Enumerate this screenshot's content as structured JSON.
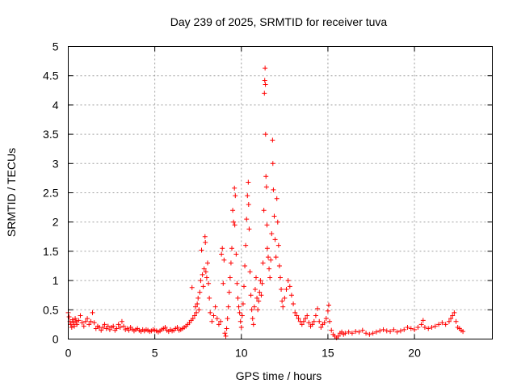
{
  "chart_data": {
    "type": "scatter",
    "title": "Day 239 of 2025, SRMTID for receiver tuva",
    "xlabel": "GPS time / hours",
    "ylabel": "SRMTID / TECUs",
    "xlim": [
      0,
      24.5
    ],
    "ylim": [
      0,
      5
    ],
    "xticks": [
      0,
      5,
      10,
      15,
      20
    ],
    "yticks": [
      0,
      0.5,
      1,
      1.5,
      2,
      2.5,
      3,
      3.5,
      4,
      4.5,
      5
    ],
    "xtick_labels": [
      "0",
      "5",
      "10",
      "15",
      "20"
    ],
    "ytick_labels": [
      "0",
      "0.5",
      "1",
      "1.5",
      "2",
      "2.5",
      "3",
      "3.5",
      "4",
      "4.5",
      "5"
    ],
    "grid": true,
    "marker": "+",
    "series": [
      {
        "name": "SRMTID",
        "color": "#ff0000",
        "points": [
          [
            0.0,
            0.45
          ],
          [
            0.05,
            0.38
          ],
          [
            0.1,
            0.3
          ],
          [
            0.15,
            0.25
          ],
          [
            0.2,
            0.2
          ],
          [
            0.25,
            0.33
          ],
          [
            0.3,
            0.28
          ],
          [
            0.35,
            0.22
          ],
          [
            0.4,
            0.35
          ],
          [
            0.45,
            0.3
          ],
          [
            0.5,
            0.25
          ],
          [
            0.6,
            0.32
          ],
          [
            0.7,
            0.4
          ],
          [
            0.8,
            0.28
          ],
          [
            0.9,
            0.22
          ],
          [
            1.0,
            0.3
          ],
          [
            1.1,
            0.35
          ],
          [
            1.2,
            0.25
          ],
          [
            1.3,
            0.3
          ],
          [
            1.4,
            0.45
          ],
          [
            1.5,
            0.28
          ],
          [
            1.6,
            0.18
          ],
          [
            1.7,
            0.22
          ],
          [
            1.8,
            0.2
          ],
          [
            1.9,
            0.15
          ],
          [
            2.0,
            0.2
          ],
          [
            2.1,
            0.25
          ],
          [
            2.2,
            0.18
          ],
          [
            2.3,
            0.22
          ],
          [
            2.4,
            0.16
          ],
          [
            2.5,
            0.2
          ],
          [
            2.6,
            0.22
          ],
          [
            2.7,
            0.15
          ],
          [
            2.8,
            0.18
          ],
          [
            2.9,
            0.25
          ],
          [
            3.0,
            0.2
          ],
          [
            3.1,
            0.3
          ],
          [
            3.2,
            0.22
          ],
          [
            3.3,
            0.16
          ],
          [
            3.4,
            0.18
          ],
          [
            3.5,
            0.15
          ],
          [
            3.6,
            0.2
          ],
          [
            3.7,
            0.17
          ],
          [
            3.8,
            0.14
          ],
          [
            3.9,
            0.16
          ],
          [
            4.0,
            0.18
          ],
          [
            4.1,
            0.15
          ],
          [
            4.2,
            0.13
          ],
          [
            4.3,
            0.16
          ],
          [
            4.4,
            0.14
          ],
          [
            4.5,
            0.16
          ],
          [
            4.6,
            0.15
          ],
          [
            4.7,
            0.13
          ],
          [
            4.8,
            0.14
          ],
          [
            4.9,
            0.16
          ],
          [
            5.0,
            0.15
          ],
          [
            5.1,
            0.14
          ],
          [
            5.2,
            0.12
          ],
          [
            5.3,
            0.14
          ],
          [
            5.4,
            0.16
          ],
          [
            5.5,
            0.18
          ],
          [
            5.6,
            0.2
          ],
          [
            5.7,
            0.15
          ],
          [
            5.8,
            0.13
          ],
          [
            5.9,
            0.16
          ],
          [
            6.0,
            0.14
          ],
          [
            6.1,
            0.15
          ],
          [
            6.2,
            0.18
          ],
          [
            6.3,
            0.2
          ],
          [
            6.4,
            0.15
          ],
          [
            6.5,
            0.16
          ],
          [
            6.6,
            0.18
          ],
          [
            6.7,
            0.2
          ],
          [
            6.8,
            0.22
          ],
          [
            6.9,
            0.25
          ],
          [
            7.0,
            0.28
          ],
          [
            7.1,
            0.32
          ],
          [
            7.15,
            0.88
          ],
          [
            7.2,
            0.35
          ],
          [
            7.3,
            0.4
          ],
          [
            7.35,
            0.55
          ],
          [
            7.4,
            0.45
          ],
          [
            7.45,
            0.6
          ],
          [
            7.5,
            0.7
          ],
          [
            7.55,
            0.5
          ],
          [
            7.6,
            0.8
          ],
          [
            7.65,
            1.0
          ],
          [
            7.7,
            1.52
          ],
          [
            7.75,
            1.1
          ],
          [
            7.8,
            0.9
          ],
          [
            7.85,
            1.2
          ],
          [
            7.9,
            1.75
          ],
          [
            7.92,
            1.65
          ],
          [
            7.95,
            1.15
          ],
          [
            8.0,
            1.05
          ],
          [
            8.05,
            1.3
          ],
          [
            8.1,
            0.95
          ],
          [
            8.15,
            0.7
          ],
          [
            8.2,
            0.45
          ],
          [
            8.3,
            0.3
          ],
          [
            8.4,
            0.4
          ],
          [
            8.5,
            0.55
          ],
          [
            8.6,
            0.35
          ],
          [
            8.7,
            0.25
          ],
          [
            8.8,
            0.3
          ],
          [
            8.85,
            1.45
          ],
          [
            8.9,
            1.55
          ],
          [
            8.95,
            0.95
          ],
          [
            9.0,
            1.35
          ],
          [
            9.05,
            0.1
          ],
          [
            9.1,
            0.05
          ],
          [
            9.15,
            0.18
          ],
          [
            9.2,
            0.35
          ],
          [
            9.25,
            0.55
          ],
          [
            9.3,
            0.8
          ],
          [
            9.35,
            1.05
          ],
          [
            9.4,
            1.3
          ],
          [
            9.45,
            1.55
          ],
          [
            9.5,
            2.2
          ],
          [
            9.55,
            2.0
          ],
          [
            9.6,
            2.58
          ],
          [
            9.62,
            1.95
          ],
          [
            9.65,
            2.45
          ],
          [
            9.7,
            1.45
          ],
          [
            9.75,
            0.95
          ],
          [
            9.8,
            0.7
          ],
          [
            9.85,
            0.55
          ],
          [
            9.9,
            0.45
          ],
          [
            9.95,
            0.3
          ],
          [
            10.0,
            0.2
          ],
          [
            10.05,
            0.4
          ],
          [
            10.1,
            0.6
          ],
          [
            10.15,
            0.9
          ],
          [
            10.2,
            1.25
          ],
          [
            10.25,
            1.6
          ],
          [
            10.3,
            2.05
          ],
          [
            10.35,
            2.45
          ],
          [
            10.4,
            2.68
          ],
          [
            10.42,
            2.3
          ],
          [
            10.45,
            1.88
          ],
          [
            10.5,
            1.15
          ],
          [
            10.55,
            0.75
          ],
          [
            10.6,
            0.5
          ],
          [
            10.65,
            0.35
          ],
          [
            10.7,
            0.25
          ],
          [
            10.75,
            0.55
          ],
          [
            10.8,
            0.85
          ],
          [
            10.85,
            1.05
          ],
          [
            10.9,
            0.7
          ],
          [
            10.95,
            0.5
          ],
          [
            11.0,
            0.65
          ],
          [
            11.05,
            0.8
          ],
          [
            11.1,
            1.0
          ],
          [
            11.15,
            0.75
          ],
          [
            11.2,
            0.95
          ],
          [
            11.25,
            1.3
          ],
          [
            11.3,
            2.2
          ],
          [
            11.33,
            4.2
          ],
          [
            11.35,
            4.42
          ],
          [
            11.37,
            4.63
          ],
          [
            11.39,
            4.35
          ],
          [
            11.4,
            3.5
          ],
          [
            11.42,
            2.78
          ],
          [
            11.45,
            2.6
          ],
          [
            11.48,
            1.95
          ],
          [
            11.5,
            1.55
          ],
          [
            11.55,
            1.4
          ],
          [
            11.6,
            1.2
          ],
          [
            11.65,
            1.05
          ],
          [
            11.7,
            1.35
          ],
          [
            11.75,
            1.8
          ],
          [
            11.8,
            3.4
          ],
          [
            11.82,
            3.0
          ],
          [
            11.85,
            2.55
          ],
          [
            11.9,
            2.1
          ],
          [
            11.95,
            1.7
          ],
          [
            12.0,
            1.4
          ],
          [
            12.05,
            2.4
          ],
          [
            12.1,
            2.0
          ],
          [
            12.15,
            1.6
          ],
          [
            12.2,
            1.25
          ],
          [
            12.25,
            1.05
          ],
          [
            12.3,
            0.85
          ],
          [
            12.35,
            0.65
          ],
          [
            12.4,
            0.55
          ],
          [
            12.5,
            0.7
          ],
          [
            12.6,
            0.85
          ],
          [
            12.7,
            1.0
          ],
          [
            12.8,
            0.9
          ],
          [
            12.9,
            0.75
          ],
          [
            13.0,
            0.6
          ],
          [
            13.1,
            0.45
          ],
          [
            13.2,
            0.4
          ],
          [
            13.3,
            0.35
          ],
          [
            13.4,
            0.3
          ],
          [
            13.5,
            0.25
          ],
          [
            13.6,
            0.3
          ],
          [
            13.7,
            0.35
          ],
          [
            13.8,
            0.4
          ],
          [
            13.9,
            0.28
          ],
          [
            14.0,
            0.22
          ],
          [
            14.1,
            0.25
          ],
          [
            14.2,
            0.3
          ],
          [
            14.3,
            0.4
          ],
          [
            14.4,
            0.52
          ],
          [
            14.5,
            0.3
          ],
          [
            14.6,
            0.2
          ],
          [
            14.7,
            0.25
          ],
          [
            14.8,
            0.28
          ],
          [
            14.9,
            0.35
          ],
          [
            15.0,
            0.48
          ],
          [
            15.05,
            0.58
          ],
          [
            15.1,
            0.3
          ],
          [
            15.2,
            0.15
          ],
          [
            15.3,
            0.08
          ],
          [
            15.4,
            0.05
          ],
          [
            15.5,
            0.02
          ],
          [
            15.6,
            0.05
          ],
          [
            15.7,
            0.1
          ],
          [
            15.8,
            0.12
          ],
          [
            15.9,
            0.08
          ],
          [
            16.0,
            0.1
          ],
          [
            16.2,
            0.12
          ],
          [
            16.4,
            0.1
          ],
          [
            16.6,
            0.13
          ],
          [
            16.8,
            0.12
          ],
          [
            17.0,
            0.15
          ],
          [
            17.2,
            0.1
          ],
          [
            17.4,
            0.08
          ],
          [
            17.6,
            0.1
          ],
          [
            17.8,
            0.12
          ],
          [
            18.0,
            0.14
          ],
          [
            18.2,
            0.16
          ],
          [
            18.4,
            0.14
          ],
          [
            18.6,
            0.13
          ],
          [
            18.8,
            0.16
          ],
          [
            19.0,
            0.12
          ],
          [
            19.2,
            0.14
          ],
          [
            19.4,
            0.16
          ],
          [
            19.6,
            0.2
          ],
          [
            19.8,
            0.18
          ],
          [
            20.0,
            0.16
          ],
          [
            20.2,
            0.2
          ],
          [
            20.4,
            0.25
          ],
          [
            20.5,
            0.32
          ],
          [
            20.6,
            0.2
          ],
          [
            20.8,
            0.18
          ],
          [
            21.0,
            0.2
          ],
          [
            21.2,
            0.22
          ],
          [
            21.4,
            0.25
          ],
          [
            21.6,
            0.28
          ],
          [
            21.8,
            0.25
          ],
          [
            22.0,
            0.3
          ],
          [
            22.1,
            0.35
          ],
          [
            22.2,
            0.4
          ],
          [
            22.3,
            0.45
          ],
          [
            22.4,
            0.3
          ],
          [
            22.5,
            0.2
          ],
          [
            22.6,
            0.18
          ],
          [
            22.7,
            0.15
          ],
          [
            22.8,
            0.13
          ]
        ]
      }
    ]
  }
}
